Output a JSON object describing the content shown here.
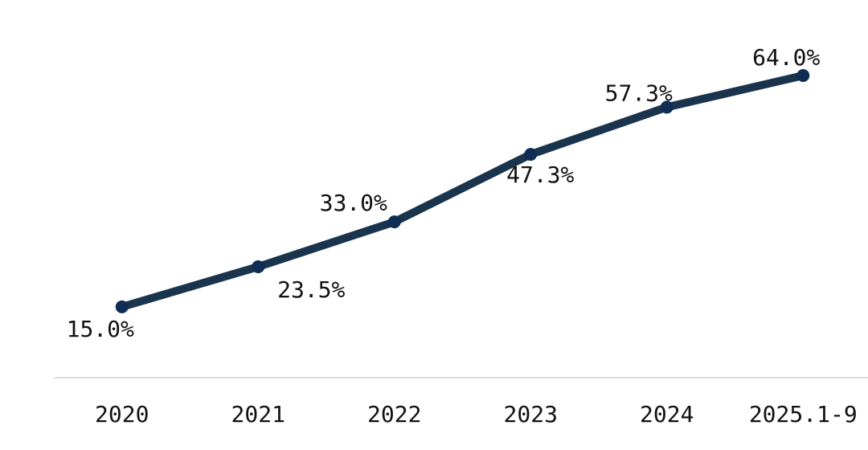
{
  "chart_data": {
    "type": "line",
    "categories": [
      "2020",
      "2021",
      "2022",
      "2023",
      "2024",
      "2025.1-9"
    ],
    "series": [
      {
        "color": "#1b344e",
        "values": [
          15.0,
          23.5,
          33.0,
          47.3,
          57.3,
          64.0
        ],
        "value_labels": [
          "15.0%",
          "23.5%",
          "33.0%",
          "47.3%",
          "57.3%",
          "64.0%"
        ]
      }
    ],
    "ylim": [
      0,
      80
    ]
  }
}
